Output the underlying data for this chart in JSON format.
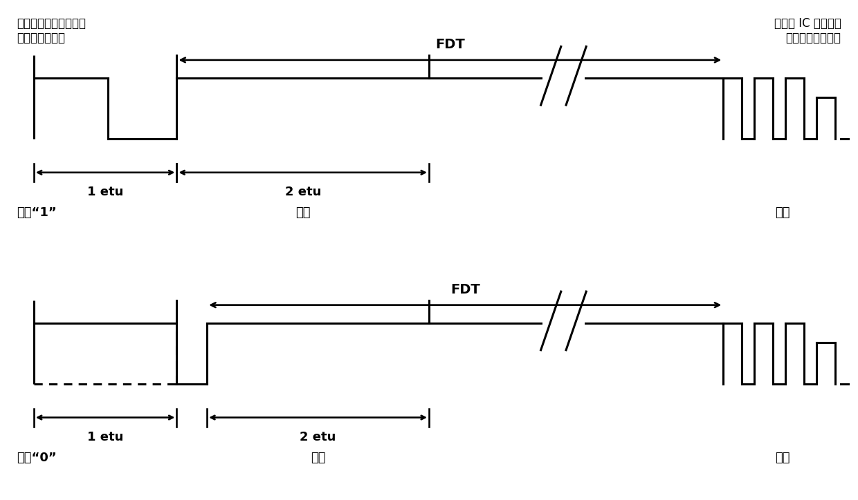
{
  "top_left_label_line1": "读卡器端传输的数据帧",
  "top_left_label_line2": "的最后一位数据",
  "top_right_label_line1": "非接触 IC 卡接收的",
  "top_right_label_line2": "数据帧的开始数据",
  "fdt_label": "FDT",
  "logic1_label": "逻辑“1”",
  "logic0_label": "逻辑“0”",
  "frame_tail_label": "帧尾",
  "frame_head_label": "帧头",
  "etu1_label": "1 etu",
  "etu2_label": "2 etu",
  "bg_color": "#ffffff",
  "line_color": "#000000",
  "lw": 2.2
}
